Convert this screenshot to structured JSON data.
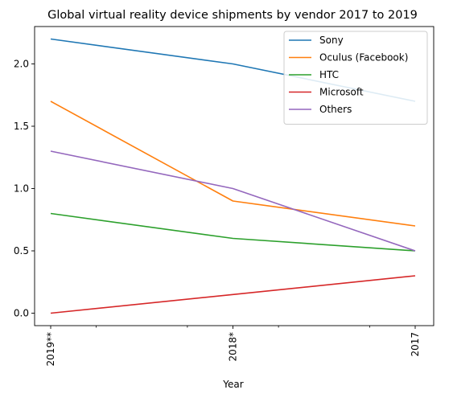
{
  "chart_data": {
    "type": "line",
    "title": "Global virtual reality device shipments by vendor 2017 to 2019",
    "xlabel": "Year",
    "ylabel": "",
    "categories": [
      "2019**",
      "2018*",
      "2017"
    ],
    "ylim": [
      -0.1,
      2.3
    ],
    "yticks": [
      0.0,
      0.5,
      1.0,
      1.5,
      2.0
    ],
    "ytick_labels": [
      "0.0",
      "0.5",
      "1.0",
      "1.5",
      "2.0"
    ],
    "grid": false,
    "legend_position": "top-right",
    "series": [
      {
        "name": "Sony",
        "color": "#1f77b4",
        "values": [
          2.2,
          2.0,
          1.7
        ]
      },
      {
        "name": "Oculus (Facebook)",
        "color": "#ff7f0e",
        "values": [
          1.7,
          0.9,
          0.7
        ]
      },
      {
        "name": "HTC",
        "color": "#2ca02c",
        "values": [
          0.8,
          0.6,
          0.5
        ]
      },
      {
        "name": "Microsoft",
        "color": "#d62728",
        "values": [
          0.0,
          0.15,
          0.3
        ]
      },
      {
        "name": "Others",
        "color": "#9467bd",
        "values": [
          1.3,
          1.0,
          0.5
        ]
      }
    ]
  }
}
